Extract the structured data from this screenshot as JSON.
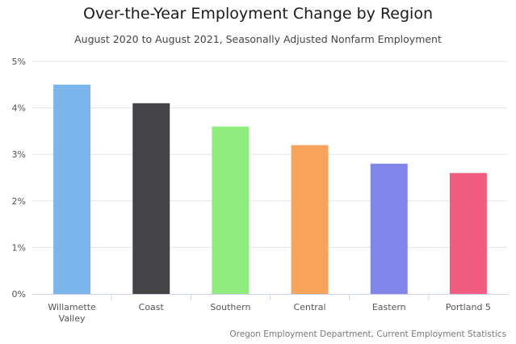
{
  "chart_data": {
    "type": "bar",
    "title": "Over-the-Year Employment Change by Region",
    "subtitle": "August 2020 to August 2021, Seasonally Adjusted Nonfarm Employment",
    "credits": "Oregon Employment Department, Current Employment Statistics",
    "categories": [
      "Willamette Valley",
      "Coast",
      "Southern",
      "Central",
      "Eastern",
      "Portland 5"
    ],
    "category_lines": [
      [
        "Willamette",
        "Valley"
      ],
      [
        "Coast"
      ],
      [
        "Southern"
      ],
      [
        "Central"
      ],
      [
        "Eastern"
      ],
      [
        "Portland 5"
      ]
    ],
    "values": [
      4.5,
      4.1,
      3.6,
      3.2,
      2.8,
      2.6
    ],
    "colors": [
      "#7cb5ec",
      "#434348",
      "#90ed7d",
      "#f7a35c",
      "#8085e9",
      "#f15c80"
    ],
    "xlabel": "",
    "ylabel": "",
    "ylim": [
      0,
      5
    ],
    "yticks": [
      0,
      1,
      2,
      3,
      4,
      5
    ],
    "ytick_labels": [
      "0%",
      "1%",
      "2%",
      "3%",
      "4%",
      "5%"
    ],
    "grid": true,
    "legend": "none"
  }
}
